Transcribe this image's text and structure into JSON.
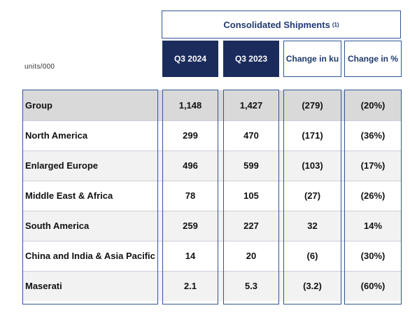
{
  "header": {
    "title": "Consolidated Shipments",
    "footnote": "(1)",
    "units": "units/000",
    "columns": [
      "Q3 2024",
      "Q3 2023",
      "Change in ku",
      "Change in %"
    ]
  },
  "rows": [
    {
      "label": "Group",
      "values": [
        "1,148",
        "1,427",
        "(279)",
        "(20%)"
      ]
    },
    {
      "label": "North America",
      "values": [
        "299",
        "470",
        "(171)",
        "(36%)"
      ]
    },
    {
      "label": "Enlarged Europe",
      "values": [
        "496",
        "599",
        "(103)",
        "(17%)"
      ]
    },
    {
      "label": "Middle East & Africa",
      "values": [
        "78",
        "105",
        "(27)",
        "(26%)"
      ]
    },
    {
      "label": "South America",
      "values": [
        "259",
        "227",
        "32",
        "14%"
      ]
    },
    {
      "label": "China and India & Asia Pacific",
      "values": [
        "14",
        "20",
        "(6)",
        "(30%)"
      ]
    },
    {
      "label": "Maserati",
      "values": [
        "2.1",
        "5.3",
        "(3.2)",
        "(60%)"
      ]
    }
  ],
  "colors": {
    "dark_header": "#1b2c5c",
    "border": "#2f5597",
    "group_row": "#d9d9d9",
    "alt_row": "#f2f2f2"
  }
}
